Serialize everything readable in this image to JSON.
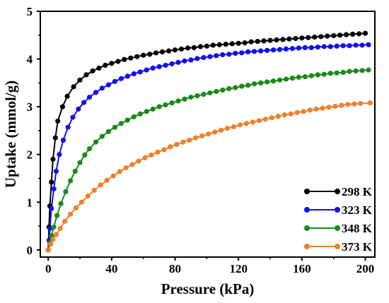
{
  "chart_data": {
    "type": "line",
    "title": "",
    "xlabel": "Pressure (kPa)",
    "ylabel": "Uptake (mmol/g)",
    "xlim": [
      -5,
      206
    ],
    "ylim": [
      -0.15,
      5
    ],
    "xticks": [
      0,
      40,
      80,
      120,
      160,
      200
    ],
    "yticks": [
      0,
      1,
      2,
      3,
      4,
      5
    ],
    "grid": false,
    "legend_position": "bottom-right",
    "series": [
      {
        "name": "298 K",
        "color": "#000000",
        "points": [
          [
            0,
            0
          ],
          [
            0.5,
            0.48
          ],
          [
            1,
            0.92
          ],
          [
            2,
            1.42
          ],
          [
            3,
            1.9
          ],
          [
            4.5,
            2.35
          ],
          [
            6,
            2.7
          ],
          [
            9,
            3.0
          ],
          [
            12,
            3.22
          ],
          [
            16,
            3.42
          ],
          [
            20,
            3.56
          ],
          [
            24,
            3.67
          ],
          [
            28,
            3.75
          ],
          [
            32,
            3.81
          ],
          [
            36,
            3.87
          ],
          [
            40,
            3.91
          ],
          [
            44,
            3.95
          ],
          [
            48,
            3.99
          ],
          [
            52,
            4.02
          ],
          [
            56,
            4.05
          ],
          [
            60,
            4.08
          ],
          [
            64,
            4.1
          ],
          [
            68,
            4.13
          ],
          [
            72,
            4.15
          ],
          [
            76,
            4.17
          ],
          [
            80,
            4.19
          ],
          [
            84,
            4.21
          ],
          [
            88,
            4.23
          ],
          [
            92,
            4.24
          ],
          [
            96,
            4.26
          ],
          [
            100,
            4.27
          ],
          [
            104,
            4.29
          ],
          [
            108,
            4.3
          ],
          [
            112,
            4.31
          ],
          [
            116,
            4.32
          ],
          [
            120,
            4.33
          ],
          [
            124,
            4.34
          ],
          [
            128,
            4.36
          ],
          [
            132,
            4.37
          ],
          [
            136,
            4.38
          ],
          [
            140,
            4.39
          ],
          [
            144,
            4.4
          ],
          [
            148,
            4.41
          ],
          [
            152,
            4.42
          ],
          [
            156,
            4.43
          ],
          [
            160,
            4.44
          ],
          [
            164,
            4.45
          ],
          [
            168,
            4.46
          ],
          [
            172,
            4.47
          ],
          [
            176,
            4.48
          ],
          [
            180,
            4.49
          ],
          [
            184,
            4.5
          ],
          [
            188,
            4.51
          ],
          [
            192,
            4.52
          ],
          [
            196,
            4.53
          ],
          [
            200,
            4.54
          ]
        ]
      },
      {
        "name": "323 K",
        "color": "#1010f0",
        "points": [
          [
            0,
            0
          ],
          [
            0.5,
            0.2
          ],
          [
            1,
            0.45
          ],
          [
            2,
            0.87
          ],
          [
            3.5,
            1.28
          ],
          [
            5,
            1.65
          ],
          [
            7,
            2.0
          ],
          [
            9.5,
            2.3
          ],
          [
            12.5,
            2.57
          ],
          [
            15.5,
            2.78
          ],
          [
            19,
            2.95
          ],
          [
            22.5,
            3.09
          ],
          [
            26,
            3.2
          ],
          [
            30,
            3.3
          ],
          [
            34,
            3.39
          ],
          [
            38,
            3.46
          ],
          [
            42,
            3.53
          ],
          [
            46,
            3.59
          ],
          [
            50,
            3.64
          ],
          [
            54,
            3.69
          ],
          [
            58,
            3.73
          ],
          [
            62,
            3.77
          ],
          [
            66,
            3.81
          ],
          [
            70,
            3.84
          ],
          [
            74,
            3.87
          ],
          [
            78,
            3.9
          ],
          [
            82,
            3.93
          ],
          [
            86,
            3.96
          ],
          [
            90,
            3.98
          ],
          [
            94,
            4.01
          ],
          [
            98,
            4.03
          ],
          [
            102,
            4.05
          ],
          [
            106,
            4.07
          ],
          [
            110,
            4.09
          ],
          [
            114,
            4.1
          ],
          [
            118,
            4.12
          ],
          [
            122,
            4.13
          ],
          [
            126,
            4.15
          ],
          [
            130,
            4.16
          ],
          [
            134,
            4.17
          ],
          [
            138,
            4.18
          ],
          [
            142,
            4.19
          ],
          [
            146,
            4.2
          ],
          [
            150,
            4.21
          ],
          [
            154,
            4.22
          ],
          [
            158,
            4.23
          ],
          [
            162,
            4.24
          ],
          [
            166,
            4.24
          ],
          [
            170,
            4.25
          ],
          [
            174,
            4.26
          ],
          [
            178,
            4.26
          ],
          [
            182,
            4.27
          ],
          [
            186,
            4.28
          ],
          [
            190,
            4.28
          ],
          [
            194,
            4.29
          ],
          [
            198,
            4.29
          ],
          [
            202,
            4.3
          ]
        ]
      },
      {
        "name": "348 K",
        "color": "#1a8a1a",
        "points": [
          [
            0,
            0
          ],
          [
            1,
            0.15
          ],
          [
            2,
            0.3
          ],
          [
            3.5,
            0.48
          ],
          [
            5.5,
            0.72
          ],
          [
            8,
            0.97
          ],
          [
            11,
            1.22
          ],
          [
            14,
            1.45
          ],
          [
            17,
            1.65
          ],
          [
            20,
            1.83
          ],
          [
            23,
            1.99
          ],
          [
            26,
            2.12
          ],
          [
            30,
            2.26
          ],
          [
            34,
            2.38
          ],
          [
            38,
            2.48
          ],
          [
            42,
            2.57
          ],
          [
            46,
            2.65
          ],
          [
            50,
            2.72
          ],
          [
            54,
            2.79
          ],
          [
            58,
            2.85
          ],
          [
            62,
            2.9
          ],
          [
            66,
            2.95
          ],
          [
            70,
            3.0
          ],
          [
            74,
            3.04
          ],
          [
            78,
            3.08
          ],
          [
            82,
            3.12
          ],
          [
            86,
            3.16
          ],
          [
            90,
            3.2
          ],
          [
            94,
            3.23
          ],
          [
            98,
            3.26
          ],
          [
            102,
            3.29
          ],
          [
            106,
            3.32
          ],
          [
            110,
            3.35
          ],
          [
            114,
            3.38
          ],
          [
            118,
            3.4
          ],
          [
            122,
            3.43
          ],
          [
            126,
            3.45
          ],
          [
            130,
            3.48
          ],
          [
            134,
            3.5
          ],
          [
            138,
            3.52
          ],
          [
            142,
            3.54
          ],
          [
            146,
            3.56
          ],
          [
            150,
            3.58
          ],
          [
            154,
            3.6
          ],
          [
            158,
            3.62
          ],
          [
            162,
            3.63
          ],
          [
            166,
            3.65
          ],
          [
            170,
            3.67
          ],
          [
            174,
            3.68
          ],
          [
            178,
            3.7
          ],
          [
            182,
            3.71
          ],
          [
            186,
            3.72
          ],
          [
            190,
            3.74
          ],
          [
            194,
            3.75
          ],
          [
            198,
            3.76
          ],
          [
            202,
            3.77
          ]
        ]
      },
      {
        "name": "373 K",
        "color": "#f0802a",
        "points": [
          [
            0,
            0
          ],
          [
            1.5,
            0.12
          ],
          [
            3,
            0.22
          ],
          [
            5,
            0.32
          ],
          [
            7.5,
            0.45
          ],
          [
            10.5,
            0.6
          ],
          [
            14,
            0.75
          ],
          [
            17.5,
            0.88
          ],
          [
            21,
            1.0
          ],
          [
            25,
            1.13
          ],
          [
            29,
            1.25
          ],
          [
            33,
            1.36
          ],
          [
            37,
            1.46
          ],
          [
            41,
            1.55
          ],
          [
            45,
            1.64
          ],
          [
            49,
            1.72
          ],
          [
            53,
            1.79
          ],
          [
            57,
            1.86
          ],
          [
            61,
            1.93
          ],
          [
            65,
            1.99
          ],
          [
            69,
            2.05
          ],
          [
            73,
            2.1
          ],
          [
            77,
            2.16
          ],
          [
            81,
            2.21
          ],
          [
            85,
            2.26
          ],
          [
            89,
            2.3
          ],
          [
            93,
            2.35
          ],
          [
            97,
            2.39
          ],
          [
            101,
            2.43
          ],
          [
            105,
            2.47
          ],
          [
            109,
            2.51
          ],
          [
            113,
            2.55
          ],
          [
            117,
            2.58
          ],
          [
            121,
            2.62
          ],
          [
            125,
            2.65
          ],
          [
            129,
            2.68
          ],
          [
            133,
            2.71
          ],
          [
            137,
            2.74
          ],
          [
            141,
            2.77
          ],
          [
            145,
            2.8
          ],
          [
            149,
            2.83
          ],
          [
            153,
            2.85
          ],
          [
            157,
            2.88
          ],
          [
            161,
            2.9
          ],
          [
            165,
            2.93
          ],
          [
            169,
            2.95
          ],
          [
            173,
            2.97
          ],
          [
            177,
            2.99
          ],
          [
            181,
            3.01
          ],
          [
            185,
            3.03
          ],
          [
            189,
            3.05
          ],
          [
            193,
            3.06
          ],
          [
            197,
            3.07
          ],
          [
            203,
            3.08
          ]
        ]
      }
    ]
  }
}
